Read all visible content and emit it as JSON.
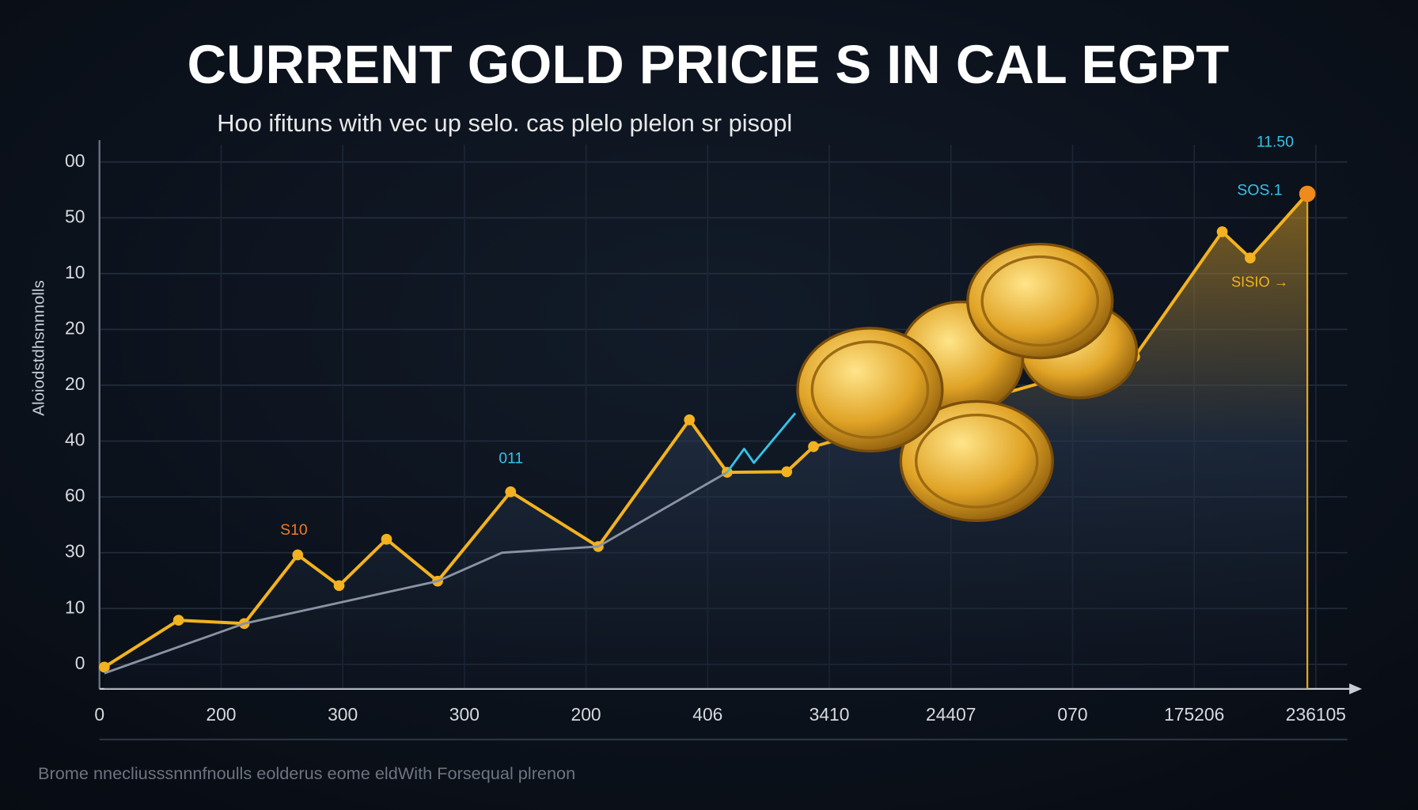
{
  "chart_data": {
    "type": "line",
    "title": "CURRENT GOLD PRICIE S IN CAL EGPT",
    "subtitle": "Hoo ifituns with vec up selo. cas plelo plelon sr pisopl",
    "y_label": "Aloiodstdhsnnnolls",
    "footnote": "Brome nnecliusssnnnfnoulls eolderus eome eldWith Forsequal plrenon",
    "xlim": [
      0,
      10.3
    ],
    "ylim": [
      -0.44,
      9.1
    ],
    "xticks": [
      {
        "value": 0,
        "label": "0"
      },
      {
        "value": 1,
        "label": "200"
      },
      {
        "value": 2,
        "label": "300"
      },
      {
        "value": 3,
        "label": "300"
      },
      {
        "value": 4,
        "label": "200"
      },
      {
        "value": 5,
        "label": "406"
      },
      {
        "value": 6,
        "label": "3410"
      },
      {
        "value": 7,
        "label": "24407"
      },
      {
        "value": 8,
        "label": "070"
      },
      {
        "value": 9,
        "label": "175206"
      },
      {
        "value": 10,
        "label": "236105"
      }
    ],
    "yticks": [
      {
        "value": 0,
        "label": "0"
      },
      {
        "value": 1,
        "label": "10"
      },
      {
        "value": 2,
        "label": "30"
      },
      {
        "value": 3,
        "label": "60"
      },
      {
        "value": 4,
        "label": "40"
      },
      {
        "value": 5,
        "label": "20"
      },
      {
        "value": 6,
        "label": "20"
      },
      {
        "value": 7,
        "label": "10"
      },
      {
        "value": 8,
        "label": "50"
      },
      {
        "value": 9,
        "label": "00"
      }
    ],
    "grid": true,
    "series": [
      {
        "color": "#f3b21f",
        "x": [
          0.04,
          0.65,
          1.19,
          1.63,
          1.97,
          2.36,
          2.78,
          3.38,
          4.1,
          4.85,
          5.16,
          5.65,
          5.87,
          8.51,
          9.23,
          9.46,
          9.93
        ],
        "values": [
          -0.05,
          0.79,
          0.73,
          1.96,
          1.41,
          2.24,
          1.49,
          3.09,
          2.11,
          4.38,
          3.44,
          3.45,
          3.9,
          5.51,
          7.75,
          7.28,
          8.43
        ]
      },
      {
        "color": "#8a93a3",
        "x": [
          0.04,
          1.19,
          2.78,
          3.31,
          4.1,
          5.16
        ],
        "values": [
          -0.16,
          0.73,
          1.49,
          2.0,
          2.11,
          3.44
        ]
      },
      {
        "color": "#35c3e8",
        "x": [
          5.16,
          5.3,
          5.38,
          5.72
        ],
        "values": [
          3.44,
          3.86,
          3.61,
          4.5
        ]
      }
    ],
    "annotations": [
      "S10",
      "011",
      "11.50",
      "SOS.1",
      "SISIO →"
    ]
  }
}
